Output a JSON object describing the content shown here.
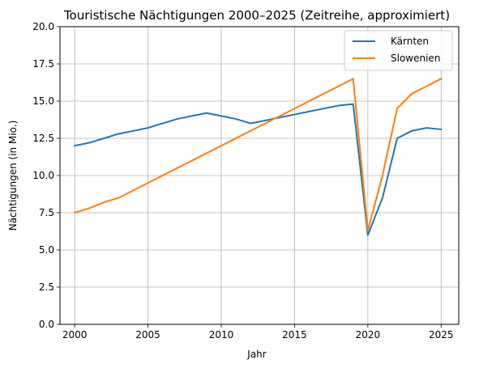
{
  "chart_data": {
    "type": "line",
    "title": "Touristische Nächtigungen 2000–2025 (Zeitreihe, approximiert)",
    "xlabel": "Jahr",
    "ylabel": "Nächtigungen (in Mio.)",
    "xlim": [
      1999,
      2026.2
    ],
    "ylim": [
      0,
      20
    ],
    "xticks": [
      2000,
      2005,
      2010,
      2015,
      2020,
      2025
    ],
    "xtick_labels": [
      "2000",
      "2005",
      "2010",
      "2015",
      "2020",
      "2025"
    ],
    "yticks": [
      0,
      2.5,
      5,
      7.5,
      10,
      12.5,
      15,
      17.5,
      20
    ],
    "ytick_labels": [
      "0.0",
      "2.5",
      "5.0",
      "7.5",
      "10.0",
      "12.5",
      "15.0",
      "17.5",
      "20.0"
    ],
    "grid": true,
    "legend_position": "top-right",
    "series": [
      {
        "name": "Kärnten",
        "color": "#1f77b4",
        "x": [
          2000,
          2001,
          2002,
          2003,
          2004,
          2005,
          2006,
          2007,
          2008,
          2009,
          2010,
          2011,
          2012,
          2013,
          2014,
          2015,
          2016,
          2017,
          2018,
          2019,
          2020,
          2021,
          2022,
          2023,
          2024,
          2025
        ],
        "y": [
          12.0,
          12.2,
          12.5,
          12.8,
          13.0,
          13.2,
          13.5,
          13.8,
          14.0,
          14.2,
          14.0,
          13.8,
          13.5,
          13.7,
          13.9,
          14.1,
          14.3,
          14.5,
          14.7,
          14.8,
          6.0,
          8.5,
          12.5,
          13.0,
          13.2,
          13.1
        ]
      },
      {
        "name": "Slowenien",
        "color": "#ff7f0e",
        "x": [
          2000,
          2001,
          2002,
          2003,
          2019,
          2020,
          2021,
          2022,
          2023,
          2024,
          2025
        ],
        "y": [
          7.5,
          7.8,
          8.2,
          8.5,
          16.5,
          6.3,
          10.0,
          14.5,
          15.5,
          16.0,
          16.5
        ]
      }
    ]
  }
}
